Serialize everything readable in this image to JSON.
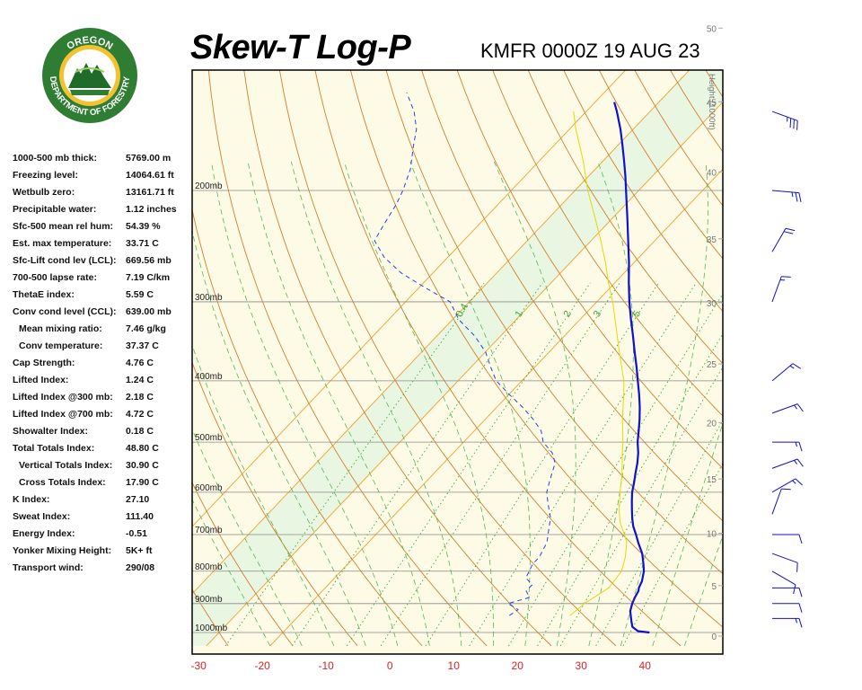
{
  "header": {
    "title": "Skew-T Log-P",
    "subtitle": "KMFR 0000Z 19 AUG 23"
  },
  "logo": {
    "top_text": "OREGON",
    "bottom_text": "DEPARTMENT OF FORESTRY",
    "ring_color": "#2e7d32",
    "inner_color": "#f2c230"
  },
  "stats": [
    {
      "label": "1000-500 mb thick:",
      "value": "5769.00 m",
      "indent": false
    },
    {
      "label": "Freezing level:",
      "value": "14064.61 ft",
      "indent": false
    },
    {
      "label": "Wetbulb zero:",
      "value": "13161.71 ft",
      "indent": false
    },
    {
      "label": "Precipitable water:",
      "value": "1.12 inches",
      "indent": false
    },
    {
      "label": "Sfc-500 mean rel hum:",
      "value": "54.39 %",
      "indent": false
    },
    {
      "label": "Est. max temperature:",
      "value": "33.71 C",
      "indent": false
    },
    {
      "label": "Sfc-Lift cond lev (LCL):",
      "value": "669.56 mb",
      "indent": false
    },
    {
      "label": "700-500 lapse rate:",
      "value": "7.19 C/km",
      "indent": false
    },
    {
      "label": "ThetaE index:",
      "value": "5.59 C",
      "indent": false
    },
    {
      "label": "Conv cond level (CCL):",
      "value": "639.00 mb",
      "indent": false
    },
    {
      "label": "Mean mixing ratio:",
      "value": "7.46 g/kg",
      "indent": true
    },
    {
      "label": "Conv temperature:",
      "value": "37.37 C",
      "indent": true
    },
    {
      "label": "Cap Strength:",
      "value": "4.76 C",
      "indent": false
    },
    {
      "label": "Lifted Index:",
      "value": "1.24 C",
      "indent": false
    },
    {
      "label": "Lifted Index @300 mb:",
      "value": "2.18 C",
      "indent": false
    },
    {
      "label": "Lifted Index @700 mb:",
      "value": "4.72 C",
      "indent": false
    },
    {
      "label": "Showalter Index:",
      "value": "0.18 C",
      "indent": false
    },
    {
      "label": "Total Totals Index:",
      "value": "48.80 C",
      "indent": false
    },
    {
      "label": "Vertical Totals Index:",
      "value": "30.90 C",
      "indent": true
    },
    {
      "label": "Cross Totals Index:",
      "value": "17.90 C",
      "indent": true
    },
    {
      "label": "K Index:",
      "value": "27.10",
      "indent": false
    },
    {
      "label": "Sweat Index:",
      "value": "111.40",
      "indent": false
    },
    {
      "label": "Energy Index:",
      "value": "-0.51",
      "indent": false
    },
    {
      "label": "Yonker Mixing Height:",
      "value": "5K+ ft",
      "indent": false
    },
    {
      "label": "Transport wind:",
      "value": "290/08",
      "indent": false
    }
  ],
  "chart_data": {
    "type": "line",
    "title": "Skew-T Log-P",
    "xlabel": "",
    "ylabel": "",
    "height_axis_label": "Height (1000ft)",
    "x_ticks": [
      -30,
      -20,
      -10,
      0,
      10,
      20,
      30,
      40
    ],
    "pressure_levels": [
      {
        "p": 200,
        "label": "200mb"
      },
      {
        "p": 300,
        "label": "300mb"
      },
      {
        "p": 400,
        "label": "400mb"
      },
      {
        "p": 500,
        "label": "500mb"
      },
      {
        "p": 600,
        "label": "600mb"
      },
      {
        "p": 700,
        "label": "700mb"
      },
      {
        "p": 800,
        "label": "800mb"
      },
      {
        "p": 900,
        "label": "900mb"
      },
      {
        "p": 1000,
        "label": "1000mb"
      }
    ],
    "height_ticks": [
      "0",
      "5",
      "10",
      "15",
      "20",
      "25",
      "30",
      "35",
      "40",
      "45",
      "50"
    ],
    "mixing_ratio_labels": [
      "0.4",
      "1",
      "2",
      "3",
      "5"
    ],
    "colors": {
      "temperature": "#1010d0",
      "dewpoint": "#2244dd",
      "parcel": "#e8d800",
      "isotherm": "#f0a030",
      "dry_adiabat": "#d08030",
      "moist_adiabat": "#55b855",
      "mixing_ratio": "#38a838",
      "isobar": "#8a8a8a",
      "tick_red": "#e02020"
    },
    "series": [
      {
        "id": "temperature",
        "points": [
          [
            1000,
            37.5
          ],
          [
            995,
            35.5
          ],
          [
            980,
            34.0
          ],
          [
            960,
            33.0
          ],
          [
            925,
            31.3
          ],
          [
            900,
            30.5
          ],
          [
            880,
            30.0
          ],
          [
            860,
            29.6
          ],
          [
            850,
            29.2
          ],
          [
            830,
            28.7
          ],
          [
            800,
            27.5
          ],
          [
            780,
            26.4
          ],
          [
            750,
            24.6
          ],
          [
            720,
            22.3
          ],
          [
            700,
            20.8
          ],
          [
            680,
            19.2
          ],
          [
            660,
            17.8
          ],
          [
            640,
            16.5
          ],
          [
            620,
            15.2
          ],
          [
            600,
            13.9
          ],
          [
            580,
            12.8
          ],
          [
            560,
            11.6
          ],
          [
            540,
            10.4
          ],
          [
            520,
            9.0
          ],
          [
            500,
            7.3
          ],
          [
            480,
            5.8
          ],
          [
            460,
            4.2
          ],
          [
            440,
            2.4
          ],
          [
            420,
            0.4
          ],
          [
            400,
            -1.8
          ],
          [
            380,
            -4.1
          ],
          [
            360,
            -6.6
          ],
          [
            340,
            -9.2
          ],
          [
            320,
            -12.0
          ],
          [
            300,
            -14.9
          ],
          [
            280,
            -17.8
          ],
          [
            260,
            -20.8
          ],
          [
            240,
            -24.2
          ],
          [
            220,
            -27.9
          ],
          [
            200,
            -32.0
          ],
          [
            190,
            -34.2
          ],
          [
            180,
            -36.6
          ],
          [
            170,
            -39.2
          ],
          [
            160,
            -42.0
          ],
          [
            150,
            -45.2
          ],
          [
            145,
            -47.0
          ]
        ]
      },
      {
        "id": "dewpoint",
        "points": [
          [
            940,
            13.0
          ],
          [
            920,
            13.5
          ],
          [
            900,
            11.0
          ],
          [
            880,
            13.5
          ],
          [
            860,
            12.0
          ],
          [
            840,
            12.0
          ],
          [
            820,
            10.0
          ],
          [
            800,
            9.5
          ],
          [
            780,
            9.0
          ],
          [
            760,
            9.0
          ],
          [
            740,
            8.5
          ],
          [
            720,
            8.0
          ],
          [
            700,
            7.0
          ],
          [
            680,
            6.0
          ],
          [
            660,
            5.0
          ],
          [
            640,
            3.5
          ],
          [
            620,
            2.0
          ],
          [
            600,
            0.5
          ],
          [
            580,
            -0.5
          ],
          [
            560,
            -1.5
          ],
          [
            540,
            -2.5
          ],
          [
            520,
            -4.5
          ],
          [
            500,
            -7.5
          ],
          [
            480,
            -9.5
          ],
          [
            460,
            -12.5
          ],
          [
            440,
            -16.0
          ],
          [
            420,
            -20.0
          ],
          [
            400,
            -24.0
          ],
          [
            380,
            -27.0
          ],
          [
            360,
            -30.0
          ],
          [
            340,
            -34.0
          ],
          [
            320,
            -39.0
          ],
          [
            300,
            -43.0
          ],
          [
            285,
            -49.0
          ],
          [
            270,
            -55.0
          ],
          [
            255,
            -60.0
          ],
          [
            240,
            -64.0
          ],
          [
            225,
            -65.0
          ],
          [
            210,
            -66.0
          ],
          [
            200,
            -67.0
          ],
          [
            185,
            -69.0
          ],
          [
            170,
            -72.0
          ],
          [
            160,
            -74.0
          ],
          [
            150,
            -77.0
          ],
          [
            140,
            -81.0
          ]
        ]
      },
      {
        "id": "parcel",
        "points": [
          [
            940,
            22.5
          ],
          [
            900,
            23.0
          ],
          [
            850,
            24.5
          ],
          [
            800,
            24.0
          ],
          [
            760,
            22.5
          ],
          [
            720,
            20.5
          ],
          [
            700,
            19.0
          ],
          [
            670,
            16.5
          ],
          [
            640,
            14.5
          ],
          [
            600,
            12.0
          ],
          [
            560,
            9.5
          ],
          [
            520,
            6.5
          ],
          [
            500,
            5.0
          ],
          [
            460,
            1.5
          ],
          [
            420,
            -2.0
          ],
          [
            400,
            -4.0
          ],
          [
            360,
            -9.0
          ],
          [
            320,
            -14.5
          ],
          [
            300,
            -17.5
          ],
          [
            280,
            -21.0
          ],
          [
            260,
            -24.5
          ],
          [
            240,
            -28.5
          ],
          [
            220,
            -33.0
          ],
          [
            200,
            -38.0
          ],
          [
            180,
            -43.0
          ],
          [
            160,
            -49.0
          ],
          [
            150,
            -52.0
          ]
        ]
      }
    ],
    "wind_barbs": [
      {
        "p": 150,
        "dir": 290,
        "spd": 35
      },
      {
        "p": 200,
        "dir": 275,
        "spd": 25
      },
      {
        "p": 250,
        "dir": 210,
        "spd": 20
      },
      {
        "p": 300,
        "dir": 200,
        "spd": 15
      },
      {
        "p": 400,
        "dir": 230,
        "spd": 15
      },
      {
        "p": 450,
        "dir": 250,
        "spd": 15
      },
      {
        "p": 500,
        "dir": 270,
        "spd": 15
      },
      {
        "p": 550,
        "dir": 250,
        "spd": 15
      },
      {
        "p": 600,
        "dir": 240,
        "spd": 15
      },
      {
        "p": 650,
        "dir": 200,
        "spd": 10
      },
      {
        "p": 700,
        "dir": 270,
        "spd": 10
      },
      {
        "p": 750,
        "dir": 290,
        "spd": 10
      },
      {
        "p": 800,
        "dir": 300,
        "spd": 10
      },
      {
        "p": 850,
        "dir": 270,
        "spd": 10
      },
      {
        "p": 900,
        "dir": 270,
        "spd": 10
      },
      {
        "p": 950,
        "dir": 270,
        "spd": 15
      }
    ]
  }
}
